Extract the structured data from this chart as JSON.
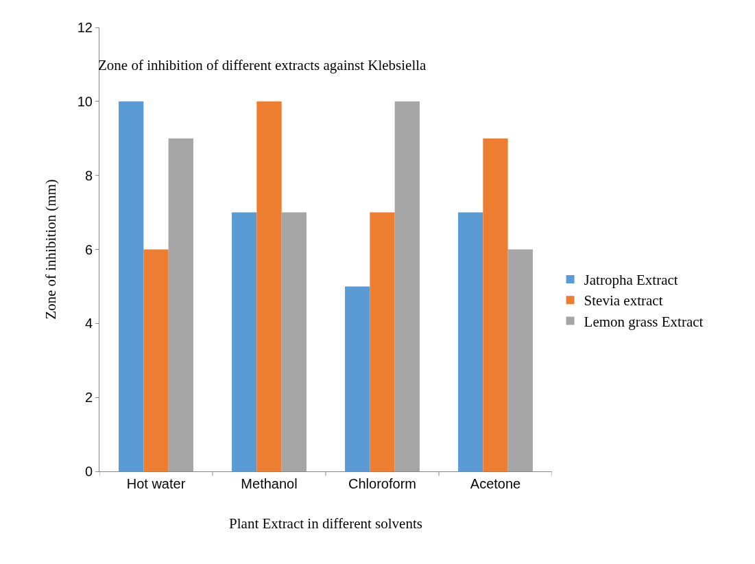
{
  "chart_data": {
    "type": "bar",
    "title": "Zone of inhibition of different extracts against Klebsiella",
    "xlabel": "Plant Extract in different solvents",
    "ylabel": "Zone of inhibition (mm)",
    "categories": [
      "Hot water",
      "Methanol",
      "Chloroform",
      "Acetone"
    ],
    "series": [
      {
        "name": "Jatropha Extract",
        "color": "#5b9bd5",
        "values": [
          10,
          7,
          5,
          7
        ]
      },
      {
        "name": "Stevia extract",
        "color": "#ed7d31",
        "values": [
          6,
          10,
          7,
          9
        ]
      },
      {
        "name": "Lemon grass Extract",
        "color": "#a5a5a5",
        "values": [
          9,
          7,
          10,
          6
        ]
      }
    ],
    "ylim": [
      0,
      12
    ],
    "yticks": [
      0,
      2,
      4,
      6,
      8,
      10,
      12
    ],
    "legend": "right"
  }
}
